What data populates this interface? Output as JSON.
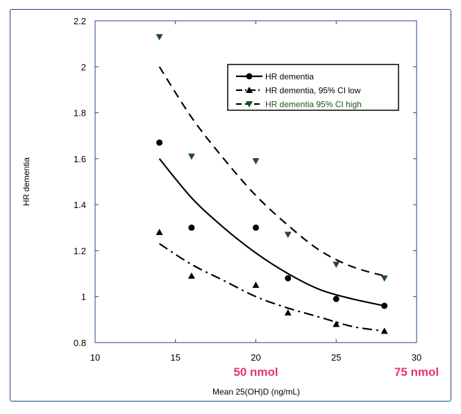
{
  "chart_data": {
    "type": "scatter",
    "title": "",
    "xlabel": "Mean 25(OH)D (ng/mL)",
    "ylabel": "HR dementia",
    "xlim": [
      10,
      30
    ],
    "ylim": [
      0.8,
      2.2
    ],
    "xticks": [
      10,
      15,
      20,
      25,
      30
    ],
    "xtick_labels": [
      "10",
      "15",
      "20",
      "25",
      "30"
    ],
    "yticks": [
      0.8,
      1.0,
      1.2,
      1.4,
      1.6,
      1.8,
      2.0,
      2.2
    ],
    "ytick_labels": [
      "0.8",
      "1",
      "1.2",
      "1.4",
      "1.6",
      "1.8",
      "2",
      "2.2"
    ],
    "grid": false,
    "legend_position": "top-right",
    "x": [
      14,
      16,
      20,
      22,
      25,
      28
    ],
    "series": [
      {
        "name": "HR dementia",
        "marker": "circle",
        "line_style": "solid",
        "color": "#000000",
        "values": [
          1.67,
          1.3,
          1.3,
          1.08,
          0.99,
          0.96
        ],
        "fit": [
          [
            14,
            1.6
          ],
          [
            16,
            1.43
          ],
          [
            18,
            1.3
          ],
          [
            20,
            1.19
          ],
          [
            22,
            1.1
          ],
          [
            24,
            1.03
          ],
          [
            26,
            0.99
          ],
          [
            28,
            0.96
          ]
        ]
      },
      {
        "name": "HR dementia, 95% CI low",
        "marker": "triangle-up",
        "line_style": "dash-dot",
        "color": "#000000",
        "values": [
          1.28,
          1.09,
          1.05,
          0.93,
          0.88,
          0.85
        ],
        "fit": [
          [
            14,
            1.23
          ],
          [
            16,
            1.14
          ],
          [
            18,
            1.07
          ],
          [
            20,
            1.0
          ],
          [
            22,
            0.95
          ],
          [
            24,
            0.91
          ],
          [
            26,
            0.87
          ],
          [
            28,
            0.85
          ]
        ]
      },
      {
        "name": "HR dementia 95% CI high",
        "marker": "triangle-down",
        "line_style": "dashed",
        "color": "#1f4f1f",
        "values": [
          2.13,
          1.61,
          1.59,
          1.27,
          1.14,
          1.08
        ],
        "fit": [
          [
            14,
            2.0
          ],
          [
            16,
            1.78
          ],
          [
            18,
            1.6
          ],
          [
            20,
            1.44
          ],
          [
            22,
            1.31
          ],
          [
            24,
            1.2
          ],
          [
            26,
            1.13
          ],
          [
            28,
            1.09
          ]
        ]
      }
    ],
    "annotations": [
      {
        "text": "50 nmol",
        "x": 20,
        "color": "#e8336d"
      },
      {
        "text": "75 nmol",
        "x": 30,
        "color": "#e8336d"
      }
    ]
  },
  "colors": {
    "frame": "#1c3f8f",
    "axis": "#1c3f8f",
    "annotation": "#e8336d",
    "ci_high_text": "#1f4f1f"
  }
}
